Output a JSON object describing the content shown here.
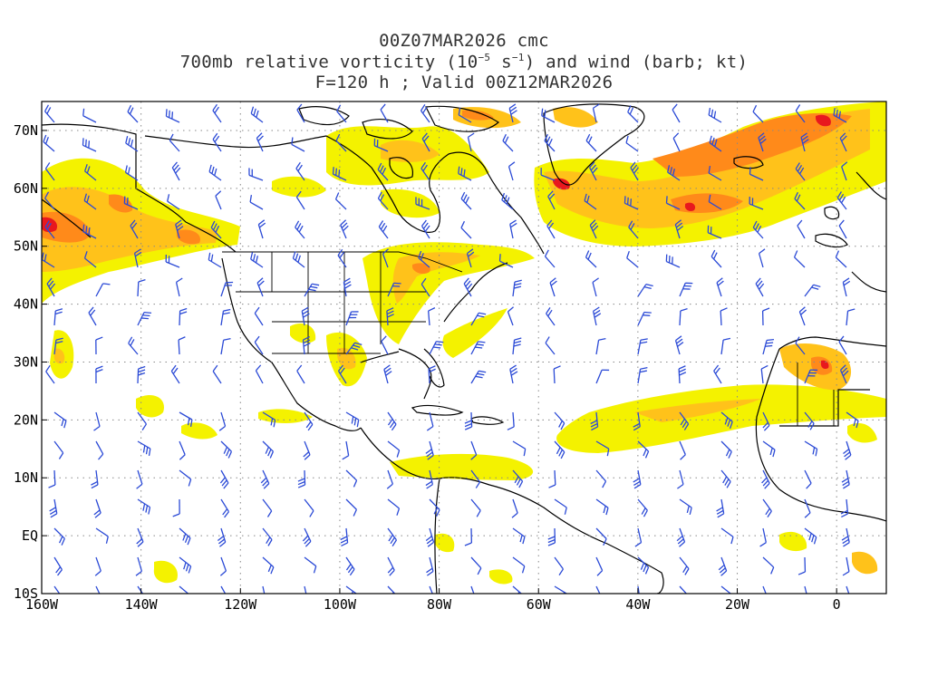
{
  "title": {
    "line1": "00Z07MAR2026 cmc",
    "line2_prefix": "700mb relative vorticity (10",
    "line2_exp1": "−5",
    "line2_mid": " s",
    "line2_exp2": "−1",
    "line2_suffix": ") and wind (barb; kt)",
    "line3": "F=120 h ; Valid 00Z12MAR2026"
  },
  "axes": {
    "lon_labels": [
      "160W",
      "140W",
      "120W",
      "100W",
      "80W",
      "60W",
      "40W",
      "20W",
      "0"
    ],
    "lat_labels": [
      "70N",
      "60N",
      "50N",
      "40N",
      "30N",
      "20N",
      "10N",
      "EQ",
      "10S"
    ],
    "lon_range": [
      -160,
      10
    ],
    "lat_range": [
      -10,
      75
    ],
    "grid": "dotted"
  },
  "colors": {
    "shade_low": "#f4f200",
    "shade_mid": "#ffc21a",
    "shade_high": "#ff8a1a",
    "shade_max": "#e8181e",
    "barb": "#2b4ad6",
    "coast": "#000000",
    "grid": "#888888"
  },
  "icons": {
    "wind_barb": "wind-barb-icon"
  }
}
